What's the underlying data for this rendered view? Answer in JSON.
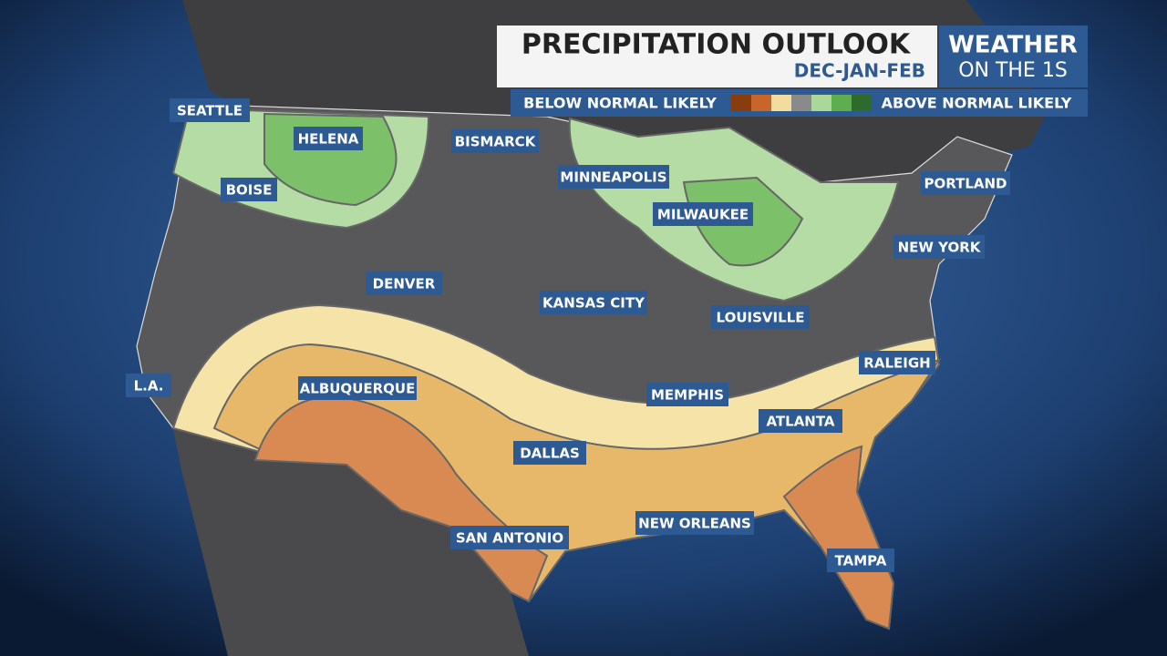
{
  "header": {
    "title": "PRECIPITATION OUTLOOK",
    "subtitle": "DEC-JAN-FEB",
    "brand": [
      "WEATHER",
      "ON THE 1S"
    ]
  },
  "legend": {
    "low_label": "BELOW NORMAL LIKELY",
    "high_label": "ABOVE NORMAL LIKELY",
    "colors": [
      "#8a3d0c",
      "#c8662a",
      "#f3dd9e",
      "#8a8a8a",
      "#a9d89a",
      "#5fae4e",
      "#2e6a2a"
    ]
  },
  "cities": [
    "SEATTLE",
    "HELENA",
    "BISMARCK",
    "BOISE",
    "MINNEAPOLIS",
    "MILWAUKEE",
    "PORTLAND",
    "NEW YORK",
    "DENVER",
    "KANSAS CITY",
    "LOUISVILLE",
    "L.A.",
    "ALBUQUERQUE",
    "RALEIGH",
    "MEMPHIS",
    "ATLANTA",
    "DALLAS",
    "NEW ORLEANS",
    "SAN ANTONIO",
    "TAMPA"
  ]
}
